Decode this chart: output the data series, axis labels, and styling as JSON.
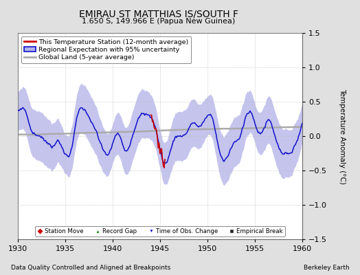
{
  "title": "EMIRAU ST MATTHIAS IS/SOUTH F",
  "subtitle": "1.650 S, 149.966 E (Papua New Guinea)",
  "xlabel_left": "Data Quality Controlled and Aligned at Breakpoints",
  "xlabel_right": "Berkeley Earth",
  "ylabel": "Temperature Anomaly (°C)",
  "xlim": [
    1930,
    1960
  ],
  "ylim": [
    -1.5,
    1.5
  ],
  "yticks": [
    -1.5,
    -1,
    -0.5,
    0,
    0.5,
    1,
    1.5
  ],
  "xticks": [
    1930,
    1935,
    1940,
    1945,
    1950,
    1955,
    1960
  ],
  "bg_color": "#e0e0e0",
  "plot_bg_color": "#ffffff",
  "regional_fill_color": "#b0b0e8",
  "regional_line_color": "#1010cc",
  "station_line_color": "#cc0000",
  "global_line_color": "#aaaaaa",
  "seed": 7
}
